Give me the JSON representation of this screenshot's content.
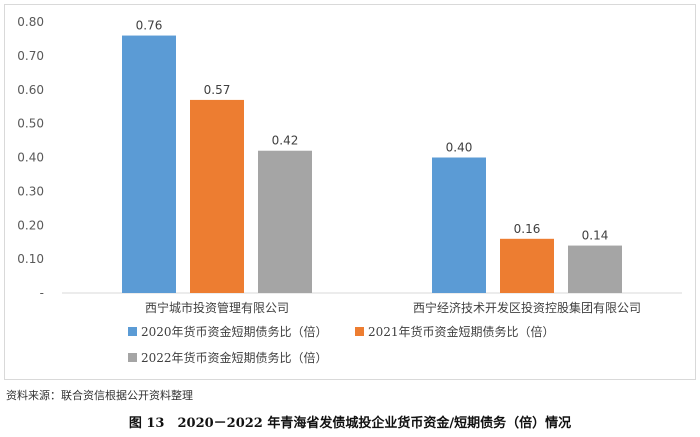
{
  "chart_data": {
    "type": "bar",
    "categories": [
      "西宁城市投资管理有限公司",
      "西宁经济技术开发区投资控股集团有限公司"
    ],
    "series": [
      {
        "name": "2020年货币资金短期债务比（倍）",
        "values": [
          0.76,
          0.4
        ],
        "labels": [
          "0.76",
          "0.40"
        ],
        "color": "#5B9BD5"
      },
      {
        "name": "2021年货币资金短期债务比（倍）",
        "values": [
          0.57,
          0.16
        ],
        "labels": [
          "0.57",
          "0.16"
        ],
        "color": "#ED7D31"
      },
      {
        "name": "2022年货币资金短期债务比（倍）",
        "values": [
          0.42,
          0.14
        ],
        "labels": [
          "0.42",
          "0.14"
        ],
        "color": "#A5A5A5"
      }
    ],
    "yticks": [
      "-",
      "0.10",
      "0.20",
      "0.30",
      "0.40",
      "0.50",
      "0.60",
      "0.70",
      "0.80"
    ],
    "ylim": [
      0,
      0.8
    ],
    "grid": false,
    "legend_position": "bottom-left"
  },
  "source": "资料来源：联合资信根据公开资料整理",
  "caption": "图 13　2020－2022 年青海省发债城投企业货币资金/短期债务（倍）情况"
}
